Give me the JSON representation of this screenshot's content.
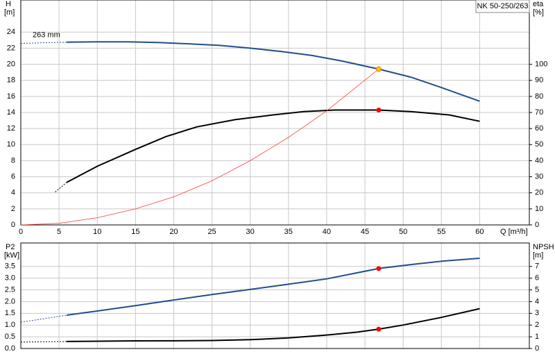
{
  "chart_data": [
    {
      "type": "line",
      "title": "NK 50-250/263",
      "xlabel": "Q [m³/h]",
      "ylabel": "H",
      "yunit": "[m]",
      "y2label": "eta",
      "y2unit": "[%]",
      "xlim": [
        0,
        66.5
      ],
      "xticks": [
        0,
        5,
        10,
        15,
        20,
        25,
        30,
        35,
        40,
        45,
        50,
        55,
        60
      ],
      "show_xtick_labels": true,
      "ylim": [
        0,
        28
      ],
      "yticks": [
        0,
        2,
        4,
        6,
        8,
        10,
        12,
        14,
        16,
        18,
        20,
        22,
        24
      ],
      "y2lim": [
        0,
        140
      ],
      "y2ticks": [
        0,
        10,
        20,
        30,
        40,
        50,
        60,
        70,
        80,
        90,
        100
      ],
      "grid": true,
      "series": [
        {
          "x": [
            0,
            6
          ],
          "values": [
            22.6,
            22.75
          ],
          "color": "#1f4e8c",
          "axis": "y",
          "line_style": "dashed"
        },
        {
          "name": "263 mm",
          "x": [
            6,
            10,
            14,
            18,
            22,
            26,
            30,
            34,
            38,
            42,
            46.8,
            51,
            55,
            60
          ],
          "values": [
            22.75,
            22.8,
            22.8,
            22.7,
            22.55,
            22.35,
            22.0,
            21.6,
            21.1,
            20.4,
            19.4,
            18.4,
            17.1,
            15.4
          ],
          "color": "#1f4e8c",
          "axis": "y",
          "line_style": "solid"
        },
        {
          "x": [
            4.5,
            6
          ],
          "values": [
            20.5,
            26.5
          ],
          "color": "#000000",
          "axis": "y2",
          "line_style": "dashed"
        },
        {
          "x": [
            6,
            10,
            15,
            19,
            23,
            28,
            33,
            37,
            41,
            46.8,
            51,
            56,
            60
          ],
          "values": [
            26.5,
            36.5,
            47,
            55,
            61,
            65.5,
            68.5,
            70.5,
            71.5,
            71.5,
            70.5,
            68.5,
            64.5
          ],
          "color": "#000000",
          "axis": "y2",
          "line_style": "solid"
        },
        {
          "x": [
            0,
            5,
            10,
            15,
            20,
            25,
            30,
            35,
            40,
            46.8
          ],
          "values": [
            0,
            0.2,
            0.9,
            2.0,
            3.5,
            5.5,
            8.0,
            10.9,
            14.2,
            19.4
          ],
          "color": "#ff3b30",
          "axis": "y",
          "line_style": "thin"
        }
      ],
      "points": [
        {
          "x": 46.8,
          "y": 19.4,
          "color": "#ffc000",
          "axis": "y"
        },
        {
          "x": 46.8,
          "y": 71.5,
          "color": "#ff0000",
          "axis": "y2"
        }
      ]
    },
    {
      "type": "line",
      "ylabel": "P2",
      "yunit": "[kW]",
      "y2label": "NPSH",
      "y2unit": "[m]",
      "xlim": [
        0,
        66.5
      ],
      "xticks": [
        0,
        5,
        10,
        15,
        20,
        25,
        30,
        35,
        40,
        45,
        50,
        55,
        60
      ],
      "show_xtick_labels": false,
      "ylim": [
        0,
        4.5
      ],
      "yticks": [
        {
          "value": 0,
          "label": "0.0"
        },
        0.5,
        {
          "value": 1,
          "label": "1.0"
        },
        1.5,
        {
          "value": 2,
          "label": "2.0"
        },
        2.5,
        {
          "value": 3,
          "label": "3.0"
        },
        3.5
      ],
      "y2lim": [
        0,
        9
      ],
      "y2ticks": [
        0,
        1,
        2,
        3,
        4,
        5,
        6,
        7
      ],
      "grid": true,
      "series": [
        {
          "x": [
            0,
            6
          ],
          "values": [
            1.12,
            1.42
          ],
          "color": "#1f4e8c",
          "axis": "y",
          "line_style": "dashed"
        },
        {
          "x": [
            6,
            10,
            15,
            20,
            25,
            30,
            35,
            40,
            46.8,
            51,
            55,
            60
          ],
          "values": [
            1.42,
            1.6,
            1.83,
            2.07,
            2.3,
            2.52,
            2.74,
            2.97,
            3.41,
            3.58,
            3.72,
            3.85
          ],
          "color": "#1f4e8c",
          "axis": "y",
          "line_style": "solid"
        },
        {
          "x": [
            0,
            6
          ],
          "values": [
            0.55,
            0.6
          ],
          "color": "#000000",
          "axis": "y2",
          "line_style": "dashed"
        },
        {
          "x": [
            6,
            10,
            15,
            20,
            25,
            30,
            35,
            40,
            44,
            46.8,
            50,
            55,
            60
          ],
          "values": [
            0.6,
            0.62,
            0.65,
            0.66,
            0.68,
            0.75,
            0.9,
            1.15,
            1.4,
            1.65,
            2.0,
            2.65,
            3.4
          ],
          "color": "#000000",
          "axis": "y2",
          "line_style": "solid"
        }
      ],
      "points": [
        {
          "x": 46.8,
          "y": 3.41,
          "color": "#ff0000",
          "axis": "y"
        },
        {
          "x": 46.8,
          "y": 1.65,
          "color": "#ff0000",
          "axis": "y2"
        }
      ]
    }
  ]
}
